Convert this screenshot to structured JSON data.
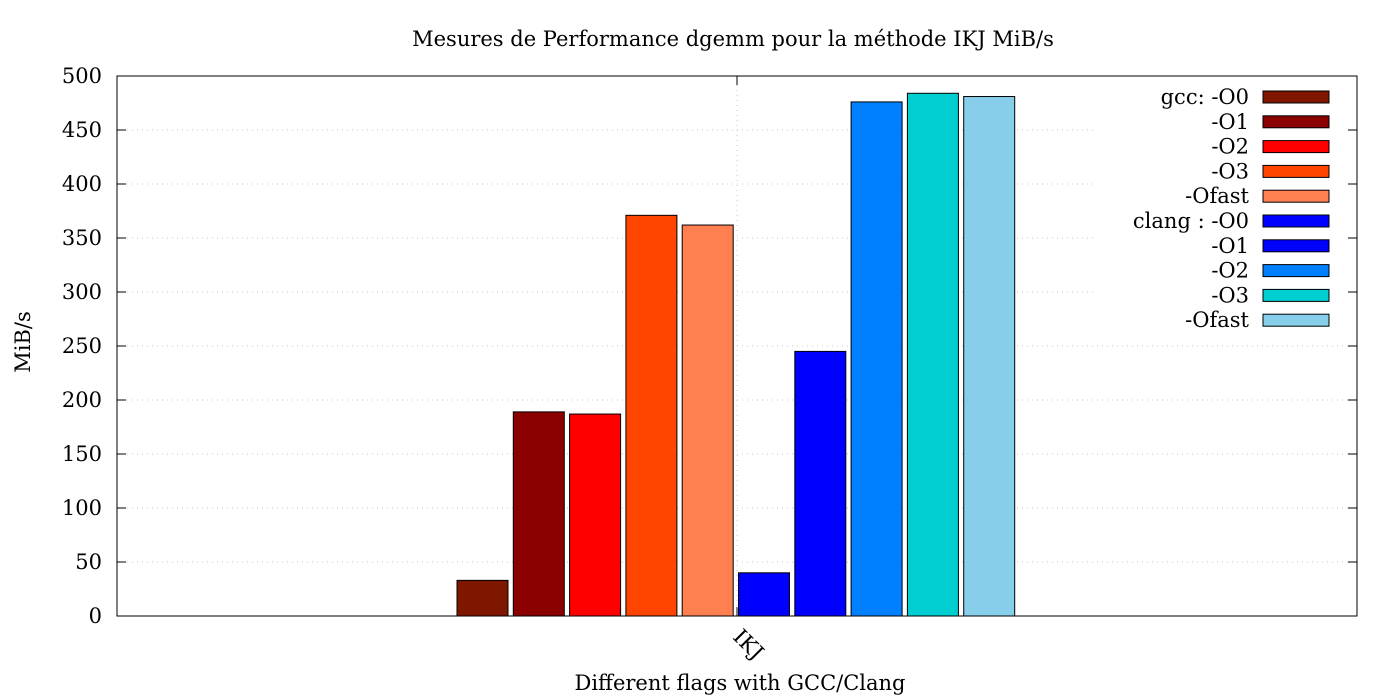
{
  "chart_data": {
    "type": "bar",
    "title": "Mesures de Performance dgemm pour la méthode IKJ MiB/s",
    "xlabel": "Different flags with GCC/Clang",
    "ylabel": "MiB/s",
    "categories": [
      "IKJ"
    ],
    "ylim": [
      0,
      500
    ],
    "yticks": [
      0,
      50,
      100,
      150,
      200,
      250,
      300,
      350,
      400,
      450,
      500
    ],
    "grid": true,
    "legend_position": "top-right",
    "series": [
      {
        "name": "gcc: -O0",
        "values": [
          33
        ],
        "color": "#7f1700"
      },
      {
        "name": "-O1",
        "values": [
          189
        ],
        "color": "#8b0000"
      },
      {
        "name": "-O2",
        "values": [
          187
        ],
        "color": "#ff0000"
      },
      {
        "name": "-O3",
        "values": [
          371
        ],
        "color": "#ff4500"
      },
      {
        "name": "-Ofast",
        "values": [
          362
        ],
        "color": "#ff7f50"
      },
      {
        "name": "clang : -O0",
        "values": [
          40
        ],
        "color": "#0000ff"
      },
      {
        "name": "-O1",
        "values": [
          245
        ],
        "color": "#0000ff"
      },
      {
        "name": "-O2",
        "values": [
          476
        ],
        "color": "#0080ff"
      },
      {
        "name": "-O3",
        "values": [
          484
        ],
        "color": "#00ced1"
      },
      {
        "name": "-Ofast",
        "values": [
          481
        ],
        "color": "#87ceeb"
      }
    ]
  }
}
